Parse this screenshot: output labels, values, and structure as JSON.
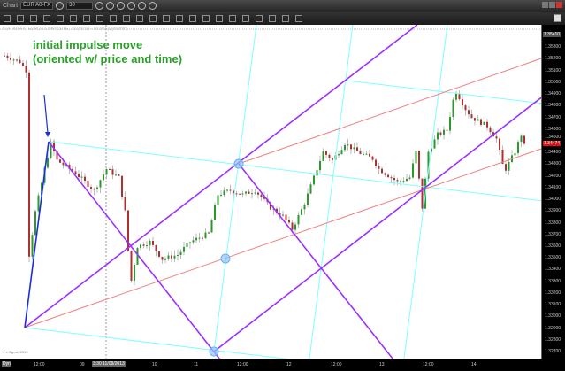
{
  "window": {
    "title": "Chart",
    "symbol": "EUR A0-FX",
    "interval": "30"
  },
  "chart": {
    "info_line": "EUR A0-FX, EURO COMPOSITE, 30 (00:00 - 00:00) (Dynamic)",
    "annotation_line1": "initial impulse move",
    "annotation_line2": "(oriented w/ price and time)",
    "copyright": "© eSignal, 2013",
    "colors": {
      "up": "#2a9a2a",
      "down": "#b03030",
      "wick": "#bbbbbb",
      "pitchfork": "#9b30ff",
      "median": "#f08080",
      "guide": "#7fffff",
      "impulse": "#1a2ee0",
      "annotation": "#2aa02a"
    },
    "price_range": [
      1.3264,
      1.3549
    ],
    "price_path": [
      [
        0,
        1.35227
      ],
      [
        5,
        1.35175
      ],
      [
        7,
        1.35101
      ],
      [
        8,
        1.33526
      ],
      [
        10,
        1.33893
      ],
      [
        13,
        1.34259
      ],
      [
        15,
        1.34479
      ],
      [
        17,
        1.34333
      ],
      [
        23,
        1.34223
      ],
      [
        29,
        1.34076
      ],
      [
        33,
        1.34259
      ],
      [
        37,
        1.34186
      ],
      [
        39,
        1.33893
      ],
      [
        40,
        1.33563
      ],
      [
        41,
        1.33306
      ],
      [
        43,
        1.33599
      ],
      [
        47,
        1.33636
      ],
      [
        51,
        1.3349
      ],
      [
        56,
        1.33526
      ],
      [
        60,
        1.33636
      ],
      [
        66,
        1.3371
      ],
      [
        69,
        1.3404
      ],
      [
        73,
        1.34076
      ],
      [
        77,
        1.3404
      ],
      [
        81,
        1.34076
      ],
      [
        86,
        1.33929
      ],
      [
        90,
        1.33856
      ],
      [
        93,
        1.33746
      ],
      [
        97,
        1.33966
      ],
      [
        103,
        1.34406
      ],
      [
        106,
        1.34333
      ],
      [
        110,
        1.34479
      ],
      [
        114,
        1.34406
      ],
      [
        119,
        1.34347
      ],
      [
        121,
        1.34259
      ],
      [
        127,
        1.34149
      ],
      [
        131,
        1.34186
      ],
      [
        133,
        1.34406
      ],
      [
        135,
        1.33929
      ],
      [
        137,
        1.34406
      ],
      [
        140,
        1.34552
      ],
      [
        143,
        1.34589
      ],
      [
        145,
        1.34846
      ],
      [
        146,
        1.34919
      ],
      [
        149,
        1.34772
      ],
      [
        151,
        1.34699
      ],
      [
        156,
        1.34626
      ],
      [
        159,
        1.34516
      ],
      [
        161,
        1.34296
      ],
      [
        162,
        1.34259
      ],
      [
        165,
        1.34406
      ],
      [
        167,
        1.34552
      ],
      [
        168,
        1.34474
      ]
    ]
  },
  "price_axis": {
    "top_label": "1.35410",
    "current_label": "1.34474",
    "labels": [
      "1.35300",
      "1.35200",
      "1.35100",
      "1.35000",
      "1.34900",
      "1.34800",
      "1.34700",
      "1.34600",
      "1.34500",
      "1.34400",
      "1.34300",
      "1.34200",
      "1.34100",
      "1.34000",
      "1.33900",
      "1.33800",
      "1.33700",
      "1.33600",
      "1.33500",
      "1.33400",
      "1.33300",
      "1.33200",
      "1.33100",
      "1.33000",
      "1.32900",
      "1.32800",
      "1.32700"
    ]
  },
  "time_axis": {
    "mode": "Dyn",
    "labels": [
      "12:00",
      "09",
      "10",
      "11",
      "12:00",
      "12",
      "12:00",
      "13",
      "12:00",
      "14"
    ],
    "cursor_label": "3:30 11/08/2013"
  }
}
